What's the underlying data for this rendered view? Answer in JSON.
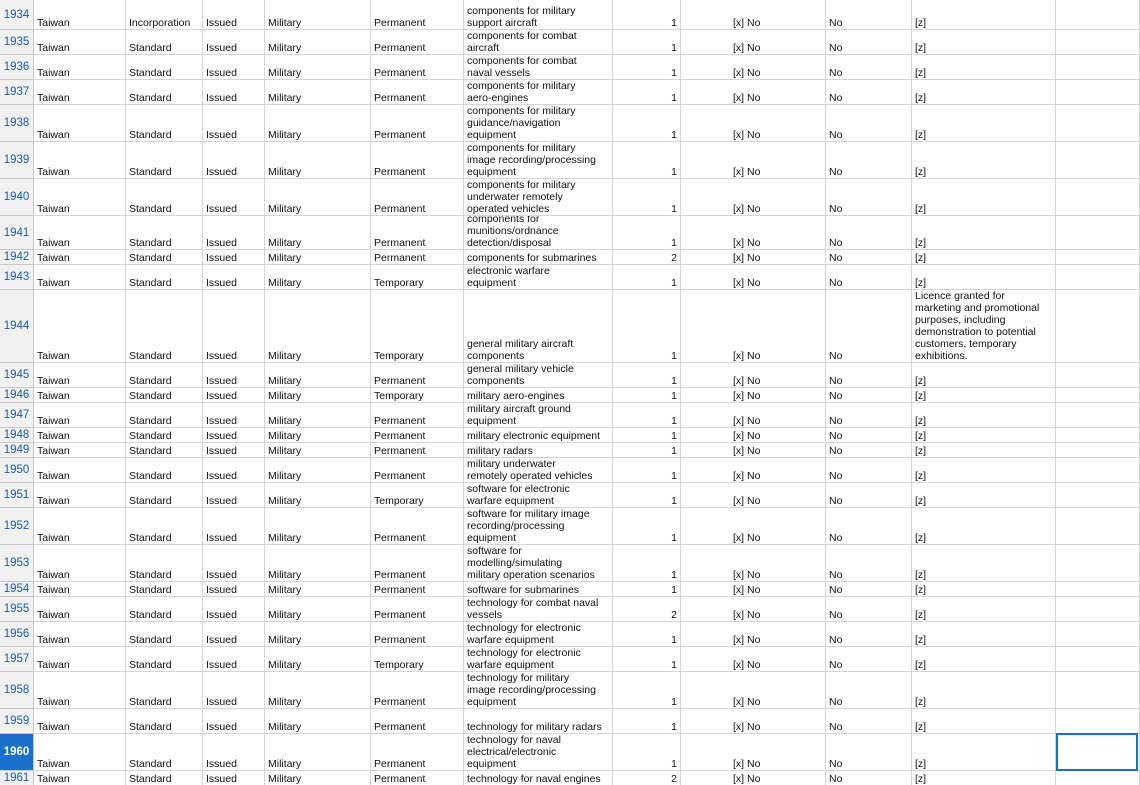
{
  "rows": [
    {
      "label": "1934",
      "cells": [
        "Taiwan",
        "Incorporation",
        "Issued",
        "Military",
        "Permanent",
        [
          "components for military",
          "support aircraft"
        ],
        1,
        "[x] No",
        "No",
        [
          "[z]"
        ]
      ]
    },
    {
      "label": "1935",
      "cells": [
        "Taiwan",
        "Standard",
        "Issued",
        "Military",
        "Permanent",
        [
          "components for combat",
          "aircraft"
        ],
        1,
        "[x] No",
        "No",
        [
          "[z]"
        ]
      ]
    },
    {
      "label": "1936",
      "cells": [
        "Taiwan",
        "Standard",
        "Issued",
        "Military",
        "Permanent",
        [
          "components for combat",
          "naval vessels"
        ],
        1,
        "[x] No",
        "No",
        [
          "[z]"
        ]
      ]
    },
    {
      "label": "1937",
      "cells": [
        "Taiwan",
        "Standard",
        "Issued",
        "Military",
        "Permanent",
        [
          "components for military",
          "aero-engines"
        ],
        1,
        "[x] No",
        "No",
        [
          "[z]"
        ]
      ]
    },
    {
      "label": "1938",
      "cells": [
        "Taiwan",
        "Standard",
        "Issued",
        "Military",
        "Permanent",
        [
          "components for military",
          "guidance/navigation",
          "equipment"
        ],
        1,
        "[x] No",
        "No",
        [
          "[z]"
        ]
      ]
    },
    {
      "label": "1939",
      "cells": [
        "Taiwan",
        "Standard",
        "Issued",
        "Military",
        "Permanent",
        [
          "components for military",
          "image recording/processing",
          "equipment"
        ],
        1,
        "[x] No",
        "No",
        [
          "[z]"
        ]
      ]
    },
    {
      "label": "1940",
      "cells": [
        "Taiwan",
        "Standard",
        "Issued",
        "Military",
        "Permanent",
        [
          "components for military",
          "underwater remotely",
          "operated vehicles"
        ],
        1,
        "[x] No",
        "No",
        [
          "[z]"
        ]
      ]
    },
    {
      "label": "1941",
      "cells": [
        "Taiwan",
        "Standard",
        "Issued",
        "Military",
        "Permanent",
        [
          "components for",
          "munitions/ordnance",
          "detection/disposal"
        ],
        1,
        "[x] No",
        "No",
        [
          "[z]"
        ]
      ]
    },
    {
      "label": "1942",
      "cells": [
        "Taiwan",
        "Standard",
        "Issued",
        "Military",
        "Permanent",
        [
          "components for submarines"
        ],
        2,
        "[x] No",
        "No",
        [
          "[z]"
        ]
      ]
    },
    {
      "label": "1943",
      "cells": [
        "Taiwan",
        "Standard",
        "Issued",
        "Military",
        "Temporary",
        [
          "electronic warfare",
          "equipment"
        ],
        1,
        "[x] No",
        "No",
        [
          "[z]"
        ]
      ]
    },
    {
      "label": "1944",
      "cells": [
        "Taiwan",
        "Standard",
        "Issued",
        "Military",
        "Temporary",
        [
          "general military aircraft",
          "components"
        ],
        1,
        "[x] No",
        "No",
        [
          "Licence granted for",
          "marketing and promotional",
          "purposes, including",
          "demonstration to potential",
          "customers, temporary",
          "exhibitions."
        ]
      ]
    },
    {
      "label": "1945",
      "cells": [
        "Taiwan",
        "Standard",
        "Issued",
        "Military",
        "Permanent",
        [
          "general military vehicle",
          "components"
        ],
        1,
        "[x] No",
        "No",
        [
          "[z]"
        ]
      ]
    },
    {
      "label": "1946",
      "cells": [
        "Taiwan",
        "Standard",
        "Issued",
        "Military",
        "Temporary",
        [
          "military aero-engines"
        ],
        1,
        "[x] No",
        "No",
        [
          "[z]"
        ]
      ]
    },
    {
      "label": "1947",
      "cells": [
        "Taiwan",
        "Standard",
        "Issued",
        "Military",
        "Permanent",
        [
          "military aircraft ground",
          "equipment"
        ],
        1,
        "[x] No",
        "No",
        [
          "[z]"
        ]
      ]
    },
    {
      "label": "1948",
      "cells": [
        "Taiwan",
        "Standard",
        "Issued",
        "Military",
        "Permanent",
        [
          "military electronic equipment"
        ],
        1,
        "[x] No",
        "No",
        [
          "[z]"
        ]
      ]
    },
    {
      "label": "1949",
      "cells": [
        "Taiwan",
        "Standard",
        "Issued",
        "Military",
        "Permanent",
        [
          "military radars"
        ],
        1,
        "[x] No",
        "No",
        [
          "[z]"
        ]
      ]
    },
    {
      "label": "1950",
      "cells": [
        "Taiwan",
        "Standard",
        "Issued",
        "Military",
        "Permanent",
        [
          "military underwater",
          "remotely operated vehicles"
        ],
        1,
        "[x] No",
        "No",
        [
          "[z]"
        ]
      ]
    },
    {
      "label": "1951",
      "cells": [
        "Taiwan",
        "Standard",
        "Issued",
        "Military",
        "Temporary",
        [
          "software for electronic",
          "warfare equipment"
        ],
        1,
        "[x] No",
        "No",
        [
          "[z]"
        ]
      ]
    },
    {
      "label": "1952",
      "cells": [
        "Taiwan",
        "Standard",
        "Issued",
        "Military",
        "Permanent",
        [
          "software for military image",
          "recording/processing",
          "equipment"
        ],
        1,
        "[x] No",
        "No",
        [
          "[z]"
        ]
      ]
    },
    {
      "label": "1953",
      "cells": [
        "Taiwan",
        "Standard",
        "Issued",
        "Military",
        "Permanent",
        [
          "software for",
          "modelling/simulating",
          "military operation scenarios"
        ],
        1,
        "[x] No",
        "No",
        [
          "[z]"
        ]
      ]
    },
    {
      "label": "1954",
      "cells": [
        "Taiwan",
        "Standard",
        "Issued",
        "Military",
        "Permanent",
        [
          "software for submarines"
        ],
        1,
        "[x] No",
        "No",
        [
          "[z]"
        ]
      ]
    },
    {
      "label": "1955",
      "cells": [
        "Taiwan",
        "Standard",
        "Issued",
        "Military",
        "Permanent",
        [
          "technology for combat naval",
          "vessels"
        ],
        2,
        "[x] No",
        "No",
        [
          "[z]"
        ]
      ]
    },
    {
      "label": "1956",
      "cells": [
        "Taiwan",
        "Standard",
        "Issued",
        "Military",
        "Permanent",
        [
          "technology for electronic",
          "warfare equipment"
        ],
        1,
        "[x] No",
        "No",
        [
          "[z]"
        ]
      ]
    },
    {
      "label": "1957",
      "cells": [
        "Taiwan",
        "Standard",
        "Issued",
        "Military",
        "Temporary",
        [
          "technology for electronic",
          "warfare equipment"
        ],
        1,
        "[x] No",
        "No",
        [
          "[z]"
        ]
      ]
    },
    {
      "label": "1958",
      "cells": [
        "Taiwan",
        "Standard",
        "Issued",
        "Military",
        "Permanent",
        [
          "technology for military",
          "image recording/processing",
          "equipment"
        ],
        1,
        "[x] No",
        "No",
        [
          "[z]"
        ]
      ]
    },
    {
      "label": "1959",
      "cells": [
        "Taiwan",
        "Standard",
        "Issued",
        "Military",
        "Permanent",
        [
          "technology for military radars"
        ],
        1,
        "[x] No",
        "No",
        [
          "[z]"
        ]
      ]
    },
    {
      "label": "1960",
      "cells": [
        "Taiwan",
        "Standard",
        "Issued",
        "Military",
        "Permanent",
        [
          "technology for naval",
          "electrical/electronic",
          "equipment"
        ],
        1,
        "[x] No",
        "No",
        [
          "[z]"
        ]
      ]
    },
    {
      "label": "1961",
      "cells": [
        "Taiwan",
        "Standard",
        "Issued",
        "Military",
        "Permanent",
        [
          "technology for naval engines"
        ],
        2,
        "[x] No",
        "No",
        [
          "[z]"
        ]
      ]
    }
  ]
}
